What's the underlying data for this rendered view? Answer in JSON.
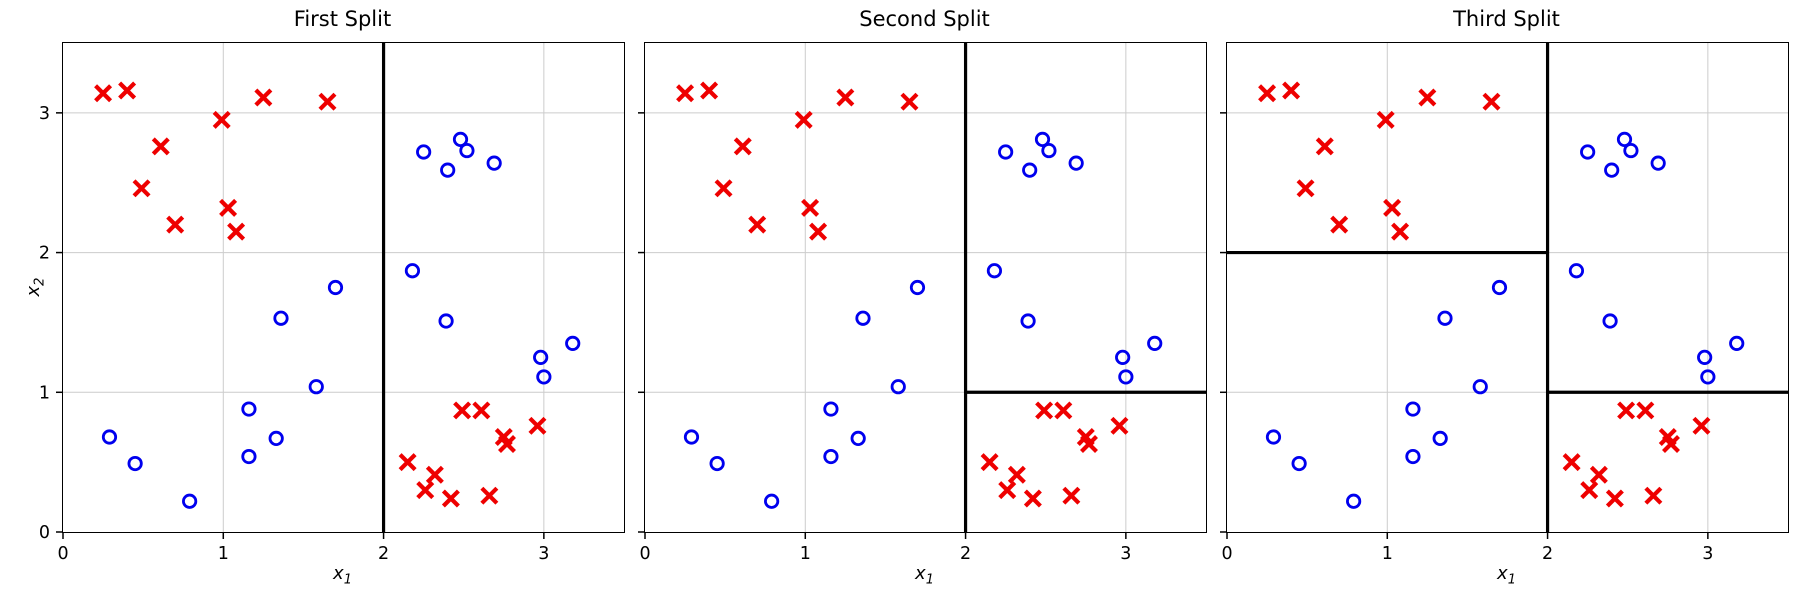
{
  "figure": {
    "background": "#ffffff",
    "grid_color": "#cccccc",
    "spine_color": "#000000",
    "split_line_color": "#000000",
    "class_x_color": "#ee0000",
    "class_o_color": "#0000ee"
  },
  "chart_data": [
    {
      "type": "scatter",
      "title": "First Split",
      "xlabel": {
        "base": "x",
        "sub": "1"
      },
      "ylabel": {
        "base": "x",
        "sub": "2"
      },
      "xlim": [
        0,
        3.5
      ],
      "ylim": [
        0,
        3.5
      ],
      "xticks": [
        0,
        1,
        2,
        3
      ],
      "yticks": [
        0,
        1,
        2,
        3
      ],
      "show_ytick_labels": true,
      "grid": true,
      "legend": "none",
      "series": [
        {
          "name": "class-x",
          "marker": "x",
          "color": "#ee0000",
          "points": [
            [
              0.25,
              3.14
            ],
            [
              0.4,
              3.16
            ],
            [
              0.61,
              2.76
            ],
            [
              0.49,
              2.46
            ],
            [
              0.7,
              2.2
            ],
            [
              0.99,
              2.95
            ],
            [
              1.03,
              2.32
            ],
            [
              1.08,
              2.15
            ],
            [
              1.25,
              3.11
            ],
            [
              1.65,
              3.08
            ],
            [
              2.15,
              0.5
            ],
            [
              2.26,
              0.3
            ],
            [
              2.32,
              0.41
            ],
            [
              2.42,
              0.24
            ],
            [
              2.49,
              0.87
            ],
            [
              2.61,
              0.87
            ],
            [
              2.66,
              0.26
            ],
            [
              2.75,
              0.68
            ],
            [
              2.77,
              0.63
            ],
            [
              2.96,
              0.76
            ]
          ]
        },
        {
          "name": "class-o",
          "marker": "o",
          "color": "#0000ee",
          "points": [
            [
              0.29,
              0.68
            ],
            [
              0.45,
              0.49
            ],
            [
              0.79,
              0.22
            ],
            [
              1.16,
              0.88
            ],
            [
              1.16,
              0.54
            ],
            [
              1.33,
              0.67
            ],
            [
              1.36,
              1.53
            ],
            [
              1.58,
              1.04
            ],
            [
              1.7,
              1.75
            ],
            [
              2.18,
              1.87
            ],
            [
              2.25,
              2.72
            ],
            [
              2.39,
              1.51
            ],
            [
              2.4,
              2.59
            ],
            [
              2.48,
              2.81
            ],
            [
              2.52,
              2.73
            ],
            [
              2.69,
              2.64
            ],
            [
              2.98,
              1.25
            ],
            [
              3.0,
              1.11
            ],
            [
              3.18,
              1.35
            ]
          ]
        }
      ],
      "split_lines": [
        {
          "axis": "x",
          "value": 2,
          "from": 0,
          "to": 3.5
        }
      ]
    },
    {
      "type": "scatter",
      "title": "Second Split",
      "xlabel": {
        "base": "x",
        "sub": "1"
      },
      "ylabel": null,
      "xlim": [
        0,
        3.5
      ],
      "ylim": [
        0,
        3.5
      ],
      "xticks": [
        0,
        1,
        2,
        3
      ],
      "yticks": [
        0,
        1,
        2,
        3
      ],
      "show_ytick_labels": false,
      "grid": true,
      "legend": "none",
      "series": [
        {
          "name": "class-x",
          "marker": "x",
          "color": "#ee0000",
          "points": [
            [
              0.25,
              3.14
            ],
            [
              0.4,
              3.16
            ],
            [
              0.61,
              2.76
            ],
            [
              0.49,
              2.46
            ],
            [
              0.7,
              2.2
            ],
            [
              0.99,
              2.95
            ],
            [
              1.03,
              2.32
            ],
            [
              1.08,
              2.15
            ],
            [
              1.25,
              3.11
            ],
            [
              1.65,
              3.08
            ],
            [
              2.15,
              0.5
            ],
            [
              2.26,
              0.3
            ],
            [
              2.32,
              0.41
            ],
            [
              2.42,
              0.24
            ],
            [
              2.49,
              0.87
            ],
            [
              2.61,
              0.87
            ],
            [
              2.66,
              0.26
            ],
            [
              2.75,
              0.68
            ],
            [
              2.77,
              0.63
            ],
            [
              2.96,
              0.76
            ]
          ]
        },
        {
          "name": "class-o",
          "marker": "o",
          "color": "#0000ee",
          "points": [
            [
              0.29,
              0.68
            ],
            [
              0.45,
              0.49
            ],
            [
              0.79,
              0.22
            ],
            [
              1.16,
              0.88
            ],
            [
              1.16,
              0.54
            ],
            [
              1.33,
              0.67
            ],
            [
              1.36,
              1.53
            ],
            [
              1.58,
              1.04
            ],
            [
              1.7,
              1.75
            ],
            [
              2.18,
              1.87
            ],
            [
              2.25,
              2.72
            ],
            [
              2.39,
              1.51
            ],
            [
              2.4,
              2.59
            ],
            [
              2.48,
              2.81
            ],
            [
              2.52,
              2.73
            ],
            [
              2.69,
              2.64
            ],
            [
              2.98,
              1.25
            ],
            [
              3.0,
              1.11
            ],
            [
              3.18,
              1.35
            ]
          ]
        }
      ],
      "split_lines": [
        {
          "axis": "x",
          "value": 2,
          "from": 0,
          "to": 3.5
        },
        {
          "axis": "y",
          "value": 1,
          "from": 2,
          "to": 3.5
        }
      ]
    },
    {
      "type": "scatter",
      "title": "Third Split",
      "xlabel": {
        "base": "x",
        "sub": "1"
      },
      "ylabel": null,
      "xlim": [
        0,
        3.5
      ],
      "ylim": [
        0,
        3.5
      ],
      "xticks": [
        0,
        1,
        2,
        3
      ],
      "yticks": [
        0,
        1,
        2,
        3
      ],
      "show_ytick_labels": false,
      "grid": true,
      "legend": "none",
      "series": [
        {
          "name": "class-x",
          "marker": "x",
          "color": "#ee0000",
          "points": [
            [
              0.25,
              3.14
            ],
            [
              0.4,
              3.16
            ],
            [
              0.61,
              2.76
            ],
            [
              0.49,
              2.46
            ],
            [
              0.7,
              2.2
            ],
            [
              0.99,
              2.95
            ],
            [
              1.03,
              2.32
            ],
            [
              1.08,
              2.15
            ],
            [
              1.25,
              3.11
            ],
            [
              1.65,
              3.08
            ],
            [
              2.15,
              0.5
            ],
            [
              2.26,
              0.3
            ],
            [
              2.32,
              0.41
            ],
            [
              2.42,
              0.24
            ],
            [
              2.49,
              0.87
            ],
            [
              2.61,
              0.87
            ],
            [
              2.66,
              0.26
            ],
            [
              2.75,
              0.68
            ],
            [
              2.77,
              0.63
            ],
            [
              2.96,
              0.76
            ]
          ]
        },
        {
          "name": "class-o",
          "marker": "o",
          "color": "#0000ee",
          "points": [
            [
              0.29,
              0.68
            ],
            [
              0.45,
              0.49
            ],
            [
              0.79,
              0.22
            ],
            [
              1.16,
              0.88
            ],
            [
              1.16,
              0.54
            ],
            [
              1.33,
              0.67
            ],
            [
              1.36,
              1.53
            ],
            [
              1.58,
              1.04
            ],
            [
              1.7,
              1.75
            ],
            [
              2.18,
              1.87
            ],
            [
              2.25,
              2.72
            ],
            [
              2.39,
              1.51
            ],
            [
              2.4,
              2.59
            ],
            [
              2.48,
              2.81
            ],
            [
              2.52,
              2.73
            ],
            [
              2.69,
              2.64
            ],
            [
              2.98,
              1.25
            ],
            [
              3.0,
              1.11
            ],
            [
              3.18,
              1.35
            ]
          ]
        }
      ],
      "split_lines": [
        {
          "axis": "x",
          "value": 2,
          "from": 0,
          "to": 3.5
        },
        {
          "axis": "y",
          "value": 1,
          "from": 2,
          "to": 3.5
        },
        {
          "axis": "y",
          "value": 2,
          "from": 0,
          "to": 2
        }
      ]
    }
  ]
}
